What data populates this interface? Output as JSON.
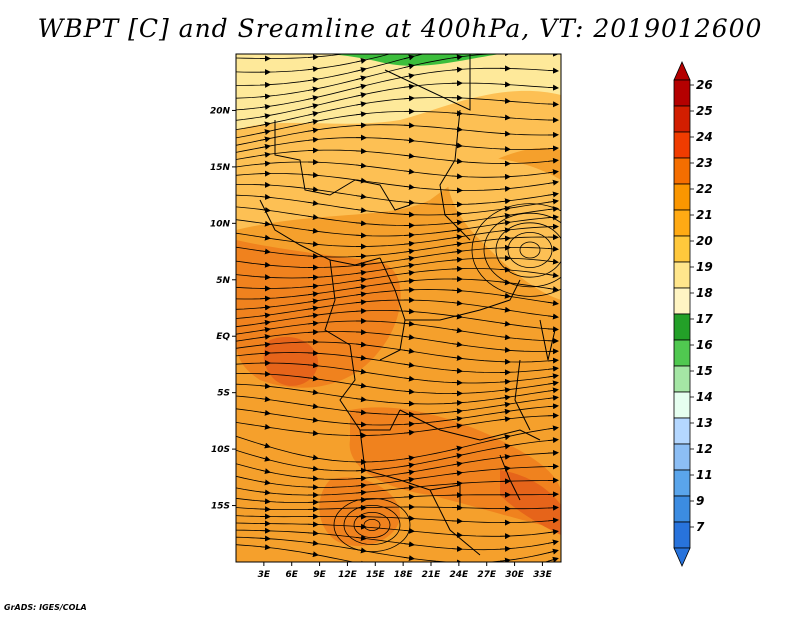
{
  "title": "WBPT [C] and Sreamline at 400hPa, VT: 2019012600",
  "credit": "GrADS: IGES/COLA",
  "map": {
    "lon_range": [
      0,
      35
    ],
    "lat_range": [
      -20,
      25
    ],
    "x_ticks": [
      "3E",
      "6E",
      "9E",
      "12E",
      "15E",
      "18E",
      "21E",
      "24E",
      "27E",
      "30E",
      "33E"
    ],
    "y_ticks": [
      "20N",
      "15N",
      "10N",
      "5N",
      "EQ",
      "5S",
      "10S",
      "15S"
    ],
    "fill_colors": {
      "green": "#3cbe3c",
      "light_yellow": "#fee99a",
      "yellow_orange": "#fdc054",
      "orange": "#f5a02c",
      "dark_orange": "#f0821e",
      "red_orange": "#e6641a"
    }
  },
  "colorbar": {
    "labels": [
      "26",
      "25",
      "24",
      "23",
      "22",
      "21",
      "20",
      "19",
      "18",
      "17",
      "16",
      "15",
      "14",
      "13",
      "12",
      "11",
      "9",
      "7"
    ],
    "colors": [
      "#b40000",
      "#d21e00",
      "#f03c00",
      "#f56e00",
      "#fa9600",
      "#ffaa14",
      "#ffc83c",
      "#ffe68c",
      "#fff5c3",
      "#23a028",
      "#50c850",
      "#a5e6a5",
      "#e6fff0",
      "#b4d7ff",
      "#8cbef5",
      "#5aa5eb",
      "#3c8ce1",
      "#2873dc"
    ],
    "top_arrow_color": "#b40000",
    "bottom_arrow_color": "#2873dc"
  }
}
